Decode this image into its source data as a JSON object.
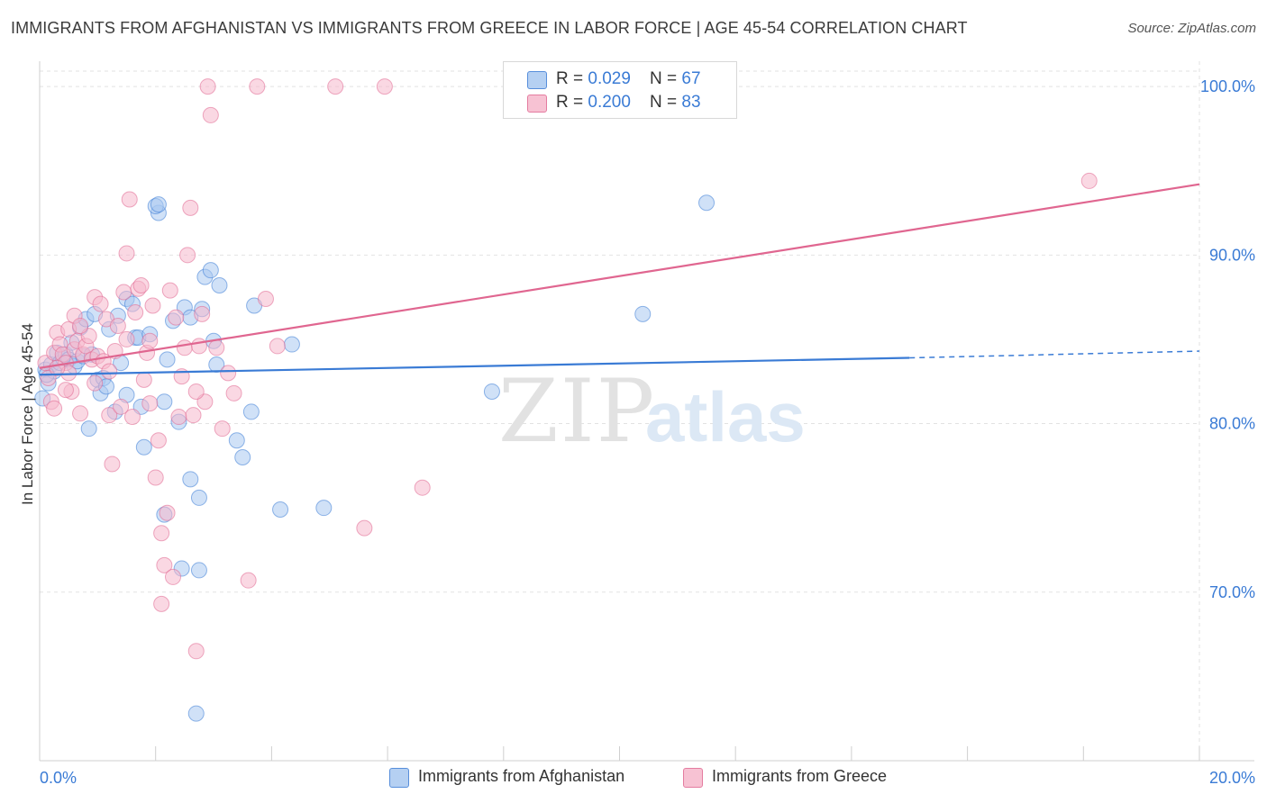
{
  "title": "IMMIGRANTS FROM AFGHANISTAN VS IMMIGRANTS FROM GREECE IN LABOR FORCE | AGE 45-54 CORRELATION CHART",
  "source": "Source: ZipAtlas.com",
  "watermark": {
    "zip": "ZIP",
    "atlas": "atlas"
  },
  "legend": {
    "rows": [
      {
        "r_label": "R = ",
        "r_value": "0.029",
        "n_label": "N = ",
        "n_value": "67",
        "color": "#a9c8f0"
      },
      {
        "r_label": "R = ",
        "r_value": "0.200",
        "n_label": "N = ",
        "n_value": "83",
        "color": "#f6b8cc"
      }
    ]
  },
  "bottom_legend": [
    {
      "label": "Immigrants from Afghanistan",
      "color": "#a9c8f0"
    },
    {
      "label": "Immigrants from Greece",
      "color": "#f6b8cc"
    }
  ],
  "chart_data": {
    "type": "scatter",
    "title": "IMMIGRANTS FROM AFGHANISTAN VS IMMIGRANTS FROM GREECE IN LABOR FORCE | AGE 45-54 CORRELATION CHART",
    "xlabel": "",
    "ylabel": "In Labor Force | Age 45-54",
    "xlim": [
      0,
      20
    ],
    "ylim": [
      60,
      101.5
    ],
    "x_tick_labels": [
      "0.0%",
      "20.0%"
    ],
    "y_ticks": [
      70,
      80,
      90,
      100
    ],
    "y_tick_labels": [
      "70.0%",
      "80.0%",
      "90.0%",
      "100.0%"
    ],
    "grid": true,
    "series": [
      {
        "name": "Immigrants from Afghanistan",
        "color": "#3a7bd5",
        "fill": "#a9c8f0",
        "r": 0.029,
        "n": 67,
        "trend": {
          "x0": 0.0,
          "y0": 82.9,
          "x1": 15.0,
          "y1": 83.9,
          "dash_to_x": 20.0,
          "dash_to_y": 84.3
        },
        "points": [
          [
            0.1,
            83.2
          ],
          [
            0.15,
            82.4
          ],
          [
            0.2,
            83.5
          ],
          [
            0.25,
            83.1
          ],
          [
            0.3,
            84.2
          ],
          [
            0.35,
            83.6
          ],
          [
            0.4,
            83.9
          ],
          [
            0.45,
            84.1
          ],
          [
            0.5,
            83.8
          ],
          [
            0.55,
            84.8
          ],
          [
            0.6,
            83.4
          ],
          [
            0.65,
            83.7
          ],
          [
            0.7,
            85.7
          ],
          [
            0.75,
            84.0
          ],
          [
            0.9,
            84.1
          ],
          [
            0.8,
            86.2
          ],
          [
            0.95,
            86.5
          ],
          [
            1.0,
            82.6
          ],
          [
            1.05,
            81.8
          ],
          [
            1.1,
            82.7
          ],
          [
            1.15,
            82.2
          ],
          [
            1.2,
            85.6
          ],
          [
            1.3,
            80.7
          ],
          [
            1.35,
            86.4
          ],
          [
            1.4,
            83.6
          ],
          [
            1.5,
            87.4
          ],
          [
            1.5,
            81.7
          ],
          [
            1.6,
            87.1
          ],
          [
            1.65,
            85.1
          ],
          [
            1.7,
            85.1
          ],
          [
            1.75,
            81.0
          ],
          [
            1.8,
            78.6
          ],
          [
            1.9,
            85.3
          ],
          [
            2.05,
            92.5
          ],
          [
            2.0,
            92.9
          ],
          [
            2.05,
            93.0
          ],
          [
            2.15,
            81.3
          ],
          [
            2.15,
            74.6
          ],
          [
            2.2,
            83.8
          ],
          [
            2.3,
            86.1
          ],
          [
            2.4,
            80.1
          ],
          [
            2.45,
            71.4
          ],
          [
            2.5,
            86.9
          ],
          [
            2.6,
            86.3
          ],
          [
            2.6,
            76.7
          ],
          [
            2.75,
            75.6
          ],
          [
            2.75,
            71.3
          ],
          [
            2.8,
            86.8
          ],
          [
            2.85,
            88.7
          ],
          [
            2.95,
            89.1
          ],
          [
            3.0,
            84.9
          ],
          [
            3.05,
            83.5
          ],
          [
            3.1,
            88.2
          ],
          [
            3.4,
            79.0
          ],
          [
            3.5,
            78.0
          ],
          [
            3.65,
            80.7
          ],
          [
            3.7,
            87.0
          ],
          [
            4.15,
            74.9
          ],
          [
            4.35,
            84.7
          ],
          [
            4.9,
            75.0
          ],
          [
            7.8,
            81.9
          ],
          [
            10.4,
            86.5
          ],
          [
            11.5,
            93.1
          ],
          [
            2.7,
            62.8
          ],
          [
            0.05,
            81.5
          ],
          [
            0.12,
            82.9
          ],
          [
            0.85,
            79.7
          ]
        ]
      },
      {
        "name": "Immigrants from Greece",
        "color": "#e06690",
        "fill": "#f6b8cc",
        "r": 0.2,
        "n": 83,
        "trend": {
          "x0": 0.0,
          "y0": 83.3,
          "x1": 20.0,
          "y1": 94.2
        },
        "points": [
          [
            0.1,
            83.6
          ],
          [
            0.15,
            82.7
          ],
          [
            0.2,
            81.3
          ],
          [
            0.25,
            84.2
          ],
          [
            0.3,
            85.4
          ],
          [
            0.35,
            84.7
          ],
          [
            0.4,
            84.1
          ],
          [
            0.45,
            83.6
          ],
          [
            0.5,
            85.6
          ],
          [
            0.5,
            83.0
          ],
          [
            0.55,
            81.9
          ],
          [
            0.6,
            84.4
          ],
          [
            0.65,
            84.9
          ],
          [
            0.7,
            80.6
          ],
          [
            0.75,
            84.1
          ],
          [
            0.8,
            84.6
          ],
          [
            0.85,
            85.2
          ],
          [
            0.9,
            83.8
          ],
          [
            0.95,
            87.5
          ],
          [
            1.0,
            84.0
          ],
          [
            1.05,
            87.1
          ],
          [
            1.1,
            83.7
          ],
          [
            1.15,
            86.2
          ],
          [
            1.2,
            80.5
          ],
          [
            1.25,
            77.6
          ],
          [
            1.3,
            84.3
          ],
          [
            1.35,
            85.8
          ],
          [
            1.4,
            81.0
          ],
          [
            1.45,
            87.8
          ],
          [
            1.5,
            85.0
          ],
          [
            1.5,
            90.1
          ],
          [
            1.55,
            93.3
          ],
          [
            1.6,
            80.4
          ],
          [
            1.65,
            86.6
          ],
          [
            1.7,
            88.0
          ],
          [
            1.75,
            88.2
          ],
          [
            1.8,
            82.6
          ],
          [
            1.85,
            84.2
          ],
          [
            1.9,
            81.2
          ],
          [
            1.95,
            87.0
          ],
          [
            2.0,
            76.8
          ],
          [
            2.05,
            79.0
          ],
          [
            2.1,
            73.5
          ],
          [
            2.1,
            69.3
          ],
          [
            2.15,
            71.6
          ],
          [
            2.2,
            74.7
          ],
          [
            2.25,
            87.9
          ],
          [
            2.3,
            70.9
          ],
          [
            2.35,
            86.3
          ],
          [
            2.4,
            80.4
          ],
          [
            2.45,
            82.8
          ],
          [
            2.5,
            84.5
          ],
          [
            2.55,
            90.0
          ],
          [
            2.6,
            92.8
          ],
          [
            2.65,
            80.5
          ],
          [
            2.7,
            66.5
          ],
          [
            2.75,
            84.6
          ],
          [
            2.8,
            86.5
          ],
          [
            2.85,
            81.3
          ],
          [
            2.9,
            100.0
          ],
          [
            2.95,
            98.3
          ],
          [
            3.05,
            84.5
          ],
          [
            3.15,
            79.7
          ],
          [
            3.25,
            83.0
          ],
          [
            3.35,
            81.8
          ],
          [
            3.6,
            70.7
          ],
          [
            3.75,
            100.0
          ],
          [
            3.9,
            87.4
          ],
          [
            4.1,
            84.6
          ],
          [
            5.1,
            100.0
          ],
          [
            5.6,
            73.8
          ],
          [
            5.95,
            100.0
          ],
          [
            6.6,
            76.2
          ],
          [
            18.1,
            94.4
          ],
          [
            0.3,
            83.3
          ],
          [
            0.6,
            86.4
          ],
          [
            0.95,
            82.4
          ],
          [
            0.45,
            82.0
          ],
          [
            1.2,
            83.1
          ],
          [
            0.7,
            85.8
          ],
          [
            2.7,
            81.9
          ],
          [
            1.9,
            84.9
          ],
          [
            0.25,
            80.9
          ]
        ]
      }
    ]
  }
}
